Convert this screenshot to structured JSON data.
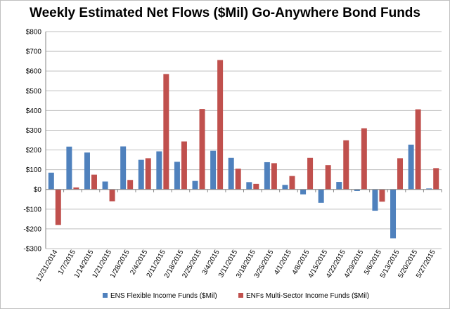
{
  "chart_data": {
    "type": "bar",
    "title": "Weekly Estimated Net Flows ($Mil) Go-Anywhere Bond Funds",
    "xlabel": "",
    "ylabel": "",
    "ylim": [
      -300,
      800
    ],
    "yticks": [
      -300,
      -200,
      -100,
      0,
      100,
      200,
      300,
      400,
      500,
      600,
      700,
      800
    ],
    "ytick_labels": [
      "-$300",
      "-$200",
      "-$100",
      "$0",
      "$100",
      "$200",
      "$300",
      "$400",
      "$500",
      "$600",
      "$700",
      "$800"
    ],
    "grid": true,
    "legend_position": "bottom",
    "categories": [
      "12/31/2014",
      "1/7/2015",
      "1/14/2015",
      "1/21/2015",
      "1/28/2015",
      "2/4/2015",
      "2/11/2015",
      "2/18/2015",
      "2/25/2015",
      "3/4/2015",
      "3/11/2015",
      "3/18/2015",
      "3/25/2015",
      "4/1/2015",
      "4/8/2015",
      "4/15/2015",
      "4/22/2015",
      "4/29/2015",
      "5/6/2015",
      "5/13/2015",
      "5/20/2015",
      "5/27/2015"
    ],
    "series": [
      {
        "name": "ENS Flexible Income Funds ($Mil)",
        "color": "#4f81bd",
        "values": [
          85,
          217,
          187,
          40,
          218,
          150,
          193,
          140,
          43,
          196,
          160,
          37,
          138,
          23,
          -25,
          -68,
          38,
          -8,
          -108,
          -248,
          227,
          5
        ]
      },
      {
        "name": "ENFs Multi-Sector Income Funds ($Mil)",
        "color": "#c0504d",
        "values": [
          -180,
          10,
          75,
          -60,
          48,
          158,
          585,
          243,
          408,
          656,
          105,
          28,
          133,
          68,
          160,
          123,
          249,
          310,
          -62,
          158,
          406,
          108
        ]
      }
    ]
  }
}
